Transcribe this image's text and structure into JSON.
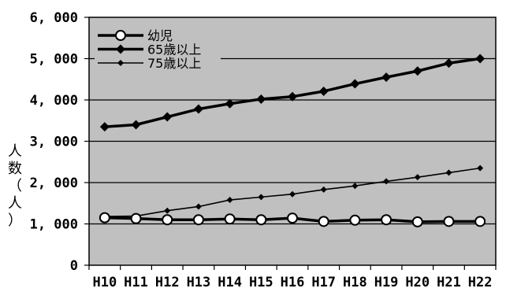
{
  "chart_data": {
    "type": "line",
    "title": "",
    "xlabel": "",
    "ylabel": "人数（人）",
    "ylim": [
      0,
      6000
    ],
    "yticks": [
      0,
      1000,
      2000,
      3000,
      4000,
      5000,
      6000
    ],
    "ytick_labels": [
      "0",
      "1, 000",
      "2, 000",
      "3, 000",
      "4, 000",
      "5, 000",
      "6, 000"
    ],
    "categories": [
      "H10",
      "H11",
      "H12",
      "H13",
      "H14",
      "H15",
      "H16",
      "H17",
      "H18",
      "H19",
      "H20",
      "H21",
      "H22"
    ],
    "grid": true,
    "legend_position": "top-left",
    "plot_background": "#c0c0c0",
    "series": [
      {
        "name": "幼児",
        "marker": "open-circle",
        "line_width": "thick",
        "values": [
          1150,
          1130,
          1100,
          1100,
          1120,
          1100,
          1140,
          1060,
          1090,
          1100,
          1050,
          1060,
          1060
        ]
      },
      {
        "name": "65歳以上",
        "marker": "filled-diamond",
        "line_width": "thick",
        "values": [
          3350,
          3400,
          3590,
          3780,
          3910,
          4020,
          4080,
          4210,
          4390,
          4550,
          4700,
          4890,
          5000
        ]
      },
      {
        "name": "75歳以上",
        "marker": "small-diamond",
        "line_width": "thin",
        "values": [
          1180,
          1190,
          1320,
          1420,
          1580,
          1650,
          1720,
          1830,
          1920,
          2030,
          2130,
          2240,
          2350
        ]
      }
    ]
  }
}
